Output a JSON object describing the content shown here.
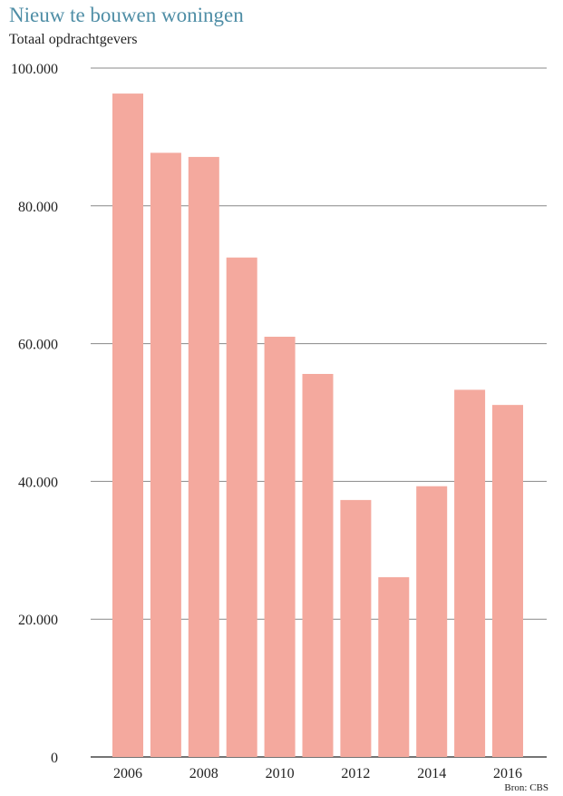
{
  "chart_data": {
    "type": "bar",
    "title": "Nieuw te bouwen woningen",
    "subtitle": "Totaal opdrachtgevers",
    "source": "Bron: CBS",
    "x": [
      2006,
      2007,
      2008,
      2009,
      2010,
      2011,
      2012,
      2013,
      2014,
      2015,
      2016
    ],
    "x_tick_labels": [
      "2006",
      "2008",
      "2010",
      "2012",
      "2014",
      "2016"
    ],
    "values": [
      96300,
      87700,
      87100,
      72500,
      61000,
      55600,
      37300,
      26100,
      39300,
      53300,
      51100
    ],
    "y_tick_labels": [
      "0",
      "20.000",
      "40.000",
      "60.000",
      "80.000",
      "100.000"
    ],
    "y_ticks": [
      0,
      20000,
      40000,
      60000,
      80000,
      100000
    ],
    "ylim": [
      0,
      100000
    ],
    "grid": true,
    "bar_color": "#f4a99e",
    "grid_color": "#888888"
  }
}
